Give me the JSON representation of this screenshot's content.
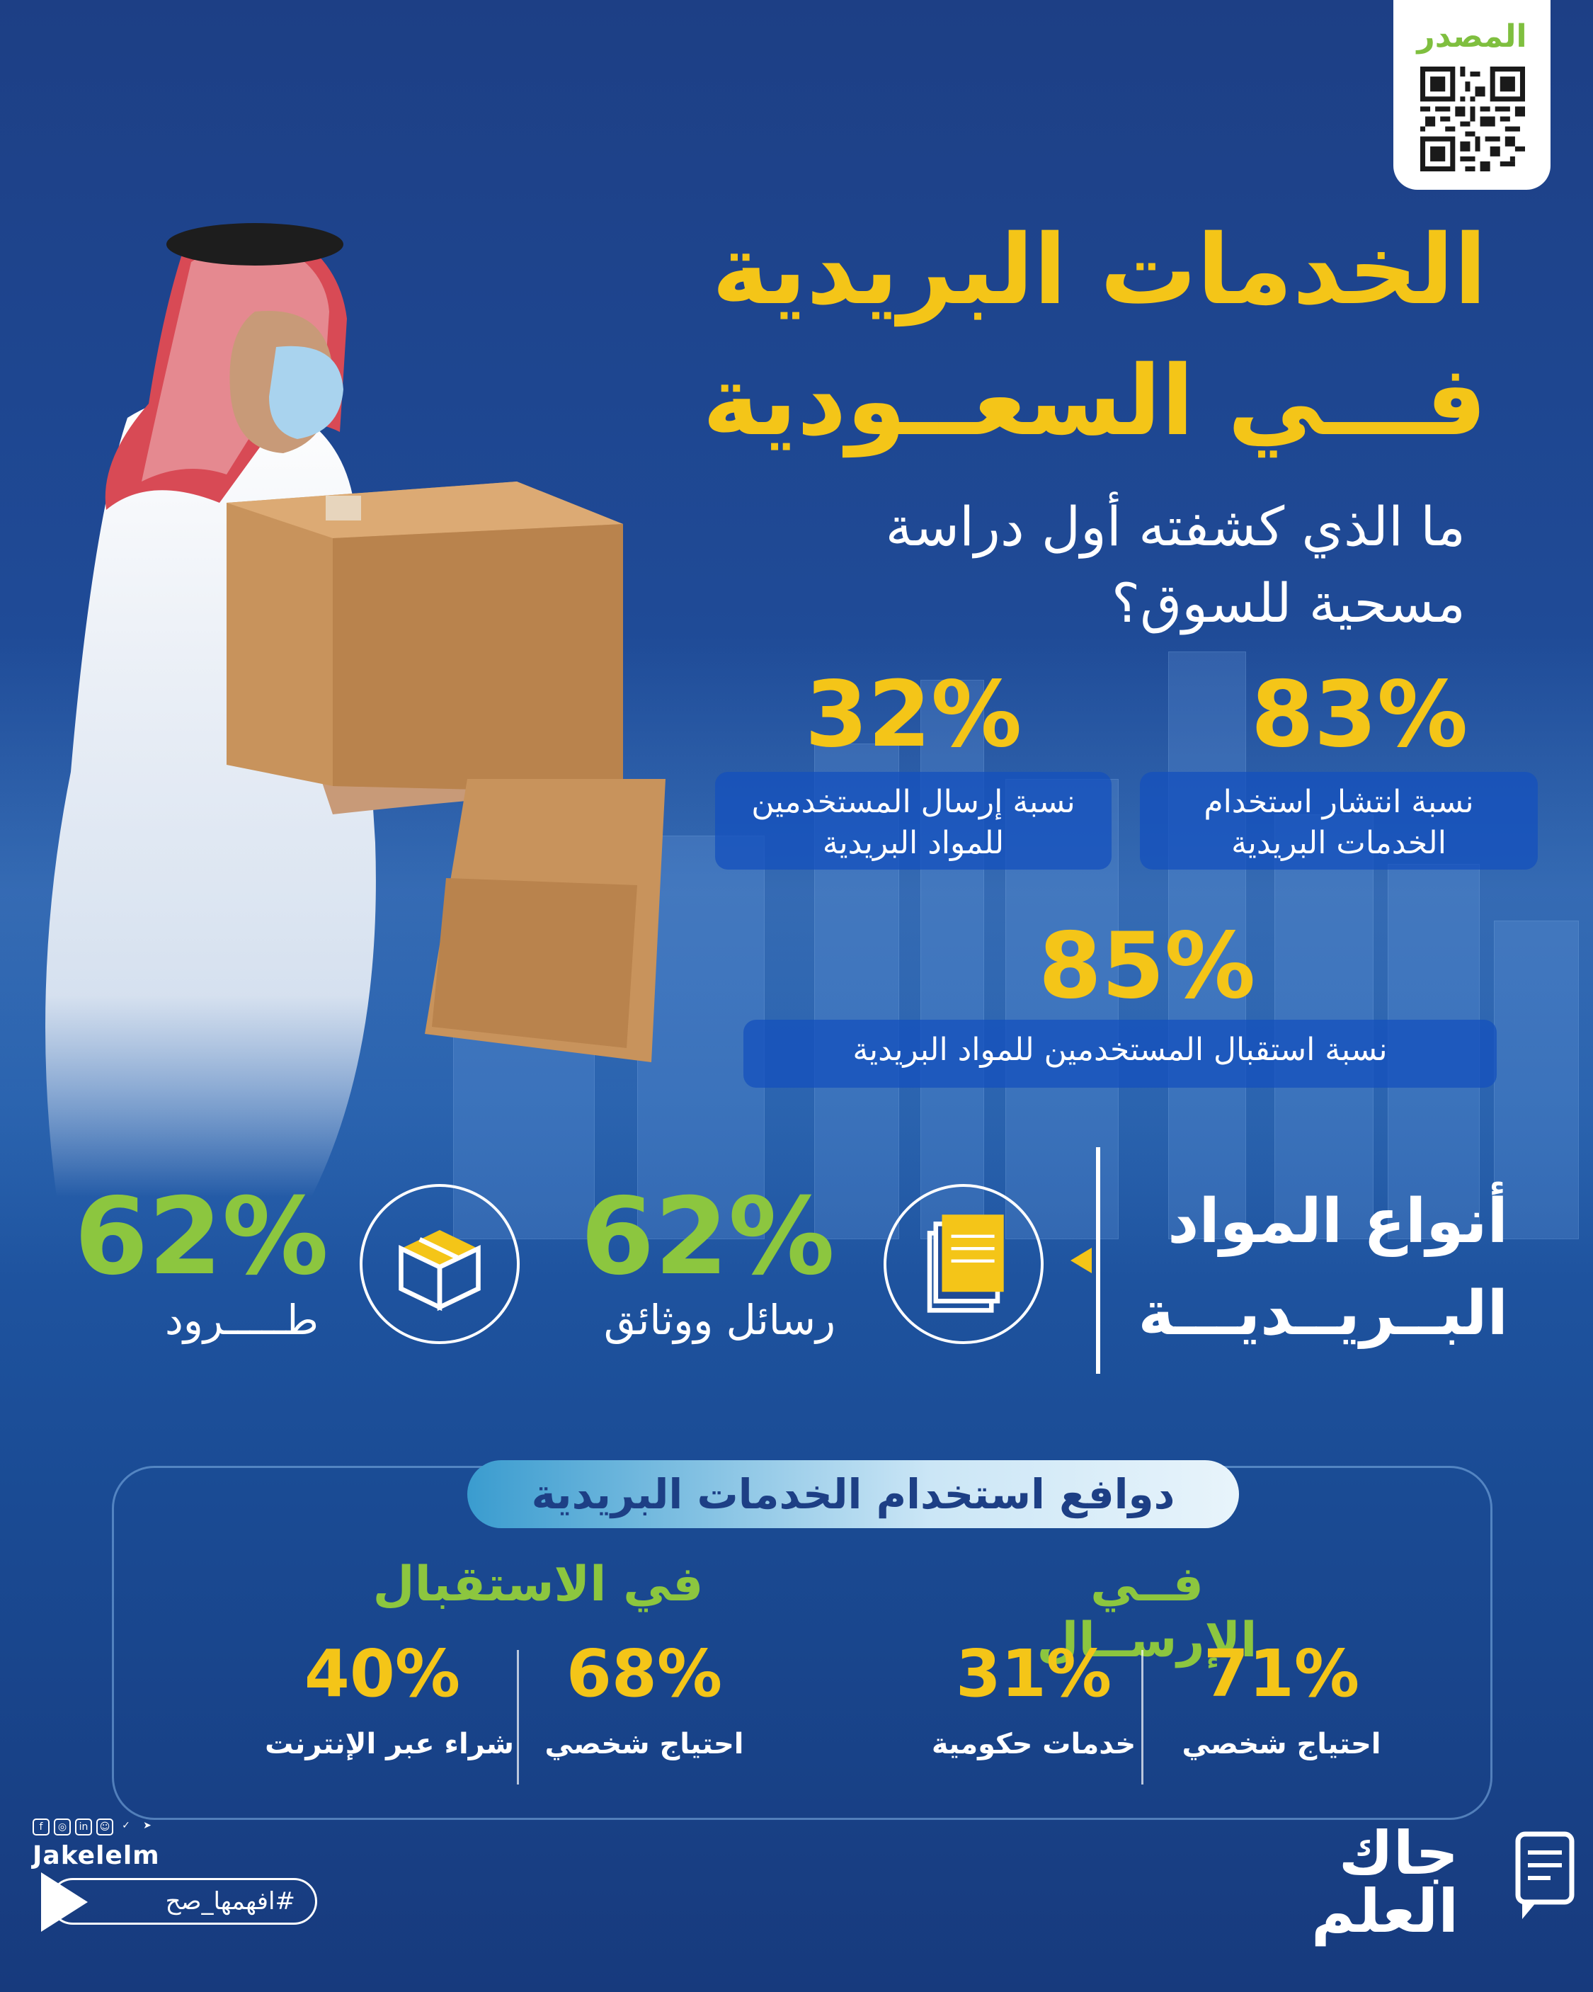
{
  "source": {
    "label": "المصدر"
  },
  "title": {
    "line1": "الخدمات البريدية",
    "line2": "فـــي السعــودية"
  },
  "subtitle": {
    "line1": "ما الذي كشفته أول دراسة",
    "line2": "مسحية للسوق؟"
  },
  "stats": [
    {
      "value": "83%",
      "label_line1": "نسبة انتشار استخدام",
      "label_line2": "الخدمات البريدية"
    },
    {
      "value": "32%",
      "label_line1": "نسبة إرسال المستخدمين",
      "label_line2": "للمواد البريدية"
    },
    {
      "value": "85%",
      "label_line1": "نسبة استقبال المستخدمين للمواد البريدية",
      "label_line2": ""
    }
  ],
  "types": {
    "title_line1": "أنواع المواد",
    "title_line2": "البــريــديـــة",
    "items": [
      {
        "value": "62%",
        "label": "رسائل ووثائق",
        "icon": "documents-icon"
      },
      {
        "value": "62%",
        "label": "طـــــرود",
        "icon": "parcel-box-icon"
      }
    ]
  },
  "motives": {
    "title": "دوافع استخدام الخدمات البريدية",
    "sending": {
      "title": "فــي الإرســال",
      "items": [
        {
          "value": "71%",
          "label": "احتياج شخصي"
        },
        {
          "value": "31%",
          "label": "خدمات حكومية"
        }
      ]
    },
    "receiving": {
      "title": "في الاستقبال",
      "items": [
        {
          "value": "68%",
          "label": "احتياج شخصي"
        },
        {
          "value": "40%",
          "label": "شراء عبر الإنترنت"
        }
      ]
    }
  },
  "footer": {
    "handle": "Jakelelm",
    "hashtag": "#افهمها_صح",
    "logo_line1": "جاك",
    "logo_line2": "العلم",
    "social_icons": [
      "facebook-icon",
      "instagram-icon",
      "linkedin-icon",
      "snapchat-icon",
      "twitter-icon",
      "telegram-icon"
    ]
  },
  "colors": {
    "accent_yellow": "#f4c518",
    "accent_green": "#8cc63f",
    "background": "#1f4a96"
  }
}
